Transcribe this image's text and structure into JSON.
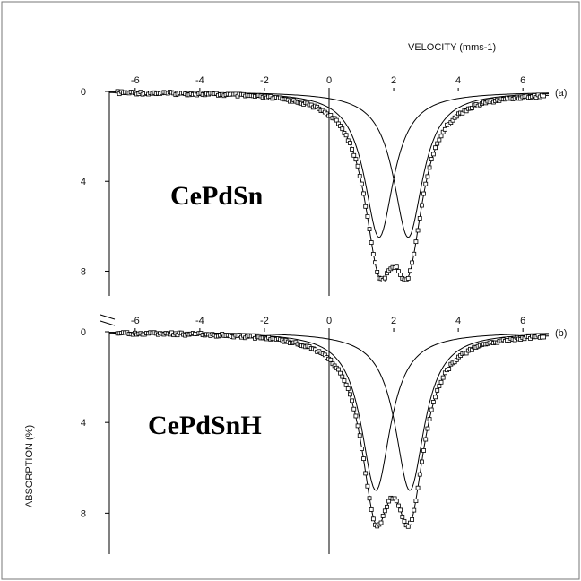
{
  "figure": {
    "x_axis_label": "VELOCITY (mms-1)",
    "y_axis_label": "ABSORPTION (%)",
    "colors": {
      "line": "#000000",
      "frame": "#555555",
      "background": "#ffffff"
    }
  },
  "chart_data": [
    {
      "type": "line",
      "panel_label": "(a)",
      "annotation": "CePdSn",
      "xlabel": "VELOCITY (mms-1)",
      "ylabel": "ABSORPTION (%)",
      "xlim": [
        -6.8,
        6.8
      ],
      "ylim": [
        0,
        8.5
      ],
      "y_inverted": true,
      "x_ticks": [
        -6,
        -4,
        -2,
        0,
        2,
        4,
        6
      ],
      "x_tick_labels": [
        "-6",
        "-4",
        "-2",
        "0",
        "2",
        "4",
        "6"
      ],
      "y_ticks": [
        0,
        4,
        8
      ],
      "y_tick_labels": [
        "0",
        "4",
        "8"
      ],
      "series": [
        {
          "kind": "data-points",
          "marker": "open-square",
          "components": [
            {
              "center": 1.55,
              "depth": 6.5,
              "hwhm": 0.55
            },
            {
              "center": 2.45,
              "depth": 6.5,
              "hwhm": 0.55
            }
          ]
        },
        {
          "kind": "fit-total",
          "components": [
            {
              "center": 1.55,
              "depth": 6.5,
              "hwhm": 0.55
            },
            {
              "center": 2.45,
              "depth": 6.5,
              "hwhm": 0.55
            }
          ]
        },
        {
          "kind": "fit-component",
          "components": [
            {
              "center": 1.55,
              "depth": 6.5,
              "hwhm": 0.55
            }
          ]
        },
        {
          "kind": "fit-component",
          "components": [
            {
              "center": 2.45,
              "depth": 6.5,
              "hwhm": 0.55
            }
          ]
        }
      ]
    },
    {
      "type": "line",
      "panel_label": "(b)",
      "annotation": "CePdSnH",
      "xlabel": "VELOCITY (mms-1)",
      "ylabel": "ABSORPTION (%)",
      "xlim": [
        -6.8,
        6.8
      ],
      "ylim": [
        0,
        8.5
      ],
      "y_inverted": true,
      "x_ticks": [
        -6,
        -4,
        -2,
        0,
        2,
        4,
        6
      ],
      "x_tick_labels": [
        "-6",
        "-4",
        "-2",
        "0",
        "2",
        "4",
        "6"
      ],
      "y_ticks": [
        0,
        4,
        8
      ],
      "y_tick_labels": [
        "0",
        "4",
        "8"
      ],
      "series": [
        {
          "kind": "data-points",
          "marker": "open-square",
          "components": [
            {
              "center": 1.45,
              "depth": 7.0,
              "hwhm": 0.55
            },
            {
              "center": 2.5,
              "depth": 7.0,
              "hwhm": 0.55
            }
          ]
        },
        {
          "kind": "fit-total",
          "components": [
            {
              "center": 1.45,
              "depth": 7.0,
              "hwhm": 0.55
            },
            {
              "center": 2.5,
              "depth": 7.0,
              "hwhm": 0.55
            }
          ]
        },
        {
          "kind": "fit-component",
          "components": [
            {
              "center": 1.45,
              "depth": 7.0,
              "hwhm": 0.55
            }
          ]
        },
        {
          "kind": "fit-component",
          "components": [
            {
              "center": 2.5,
              "depth": 7.0,
              "hwhm": 0.55
            }
          ]
        }
      ]
    }
  ]
}
